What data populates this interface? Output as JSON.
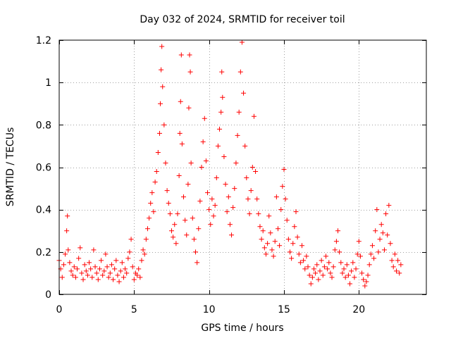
{
  "chart_data": {
    "type": "scatter",
    "title": "Day 032 of 2024, SRMTID for receiver toil",
    "xlabel": "GPS time / hours",
    "ylabel": "SRMTID / TECUs",
    "xlim": [
      0,
      24.5
    ],
    "ylim": [
      0,
      1.2
    ],
    "x_ticks": [
      0,
      5,
      10,
      15,
      20
    ],
    "x_tick_labels": [
      "0",
      "5",
      "10",
      "15",
      "20"
    ],
    "y_ticks": [
      0,
      0.2,
      0.4,
      0.6,
      0.8,
      1.0,
      1.2
    ],
    "y_tick_labels": [
      "0",
      "0.2",
      "0.4",
      "0.6",
      "0.8",
      "1",
      "1.2"
    ],
    "grid": true,
    "marker": "plus",
    "color": "#ff0000",
    "series": [
      {
        "name": "SRMTID",
        "points": [
          [
            0.0,
            0.16
          ],
          [
            0.1,
            0.12
          ],
          [
            0.2,
            0.08
          ],
          [
            0.3,
            0.14
          ],
          [
            0.4,
            0.19
          ],
          [
            0.5,
            0.3
          ],
          [
            0.55,
            0.37
          ],
          [
            0.6,
            0.21
          ],
          [
            0.7,
            0.15
          ],
          [
            0.8,
            0.11
          ],
          [
            0.9,
            0.09
          ],
          [
            1.0,
            0.13
          ],
          [
            1.1,
            0.08
          ],
          [
            1.2,
            0.12
          ],
          [
            1.3,
            0.17
          ],
          [
            1.4,
            0.22
          ],
          [
            1.5,
            0.1
          ],
          [
            1.6,
            0.07
          ],
          [
            1.7,
            0.14
          ],
          [
            1.8,
            0.11
          ],
          [
            1.9,
            0.09
          ],
          [
            2.0,
            0.15
          ],
          [
            2.1,
            0.12
          ],
          [
            2.2,
            0.08
          ],
          [
            2.3,
            0.21
          ],
          [
            2.4,
            0.13
          ],
          [
            2.5,
            0.1
          ],
          [
            2.6,
            0.07
          ],
          [
            2.7,
            0.12
          ],
          [
            2.8,
            0.16
          ],
          [
            2.9,
            0.09
          ],
          [
            3.0,
            0.11
          ],
          [
            3.1,
            0.19
          ],
          [
            3.2,
            0.13
          ],
          [
            3.3,
            0.08
          ],
          [
            3.4,
            0.1
          ],
          [
            3.5,
            0.14
          ],
          [
            3.6,
            0.07
          ],
          [
            3.7,
            0.12
          ],
          [
            3.8,
            0.16
          ],
          [
            3.9,
            0.09
          ],
          [
            4.0,
            0.06
          ],
          [
            4.1,
            0.11
          ],
          [
            4.2,
            0.15
          ],
          [
            4.3,
            0.08
          ],
          [
            4.4,
            0.12
          ],
          [
            4.5,
            0.1
          ],
          [
            4.6,
            0.17
          ],
          [
            4.7,
            0.2
          ],
          [
            4.8,
            0.26
          ],
          [
            4.9,
            0.13
          ],
          [
            5.0,
            0.07
          ],
          [
            5.1,
            0.1
          ],
          [
            5.2,
            0.09
          ],
          [
            5.3,
            0.12
          ],
          [
            5.4,
            0.08
          ],
          [
            5.5,
            0.16
          ],
          [
            5.6,
            0.21
          ],
          [
            5.7,
            0.19
          ],
          [
            5.8,
            0.26
          ],
          [
            5.9,
            0.31
          ],
          [
            6.0,
            0.36
          ],
          [
            6.1,
            0.43
          ],
          [
            6.2,
            0.48
          ],
          [
            6.3,
            0.39
          ],
          [
            6.4,
            0.53
          ],
          [
            6.5,
            0.58
          ],
          [
            6.6,
            0.67
          ],
          [
            6.7,
            0.76
          ],
          [
            6.75,
            0.9
          ],
          [
            6.8,
            1.06
          ],
          [
            6.85,
            1.17
          ],
          [
            6.9,
            0.98
          ],
          [
            7.0,
            0.8
          ],
          [
            7.1,
            0.62
          ],
          [
            7.2,
            0.49
          ],
          [
            7.3,
            0.43
          ],
          [
            7.4,
            0.38
          ],
          [
            7.5,
            0.3
          ],
          [
            7.6,
            0.27
          ],
          [
            7.7,
            0.33
          ],
          [
            7.8,
            0.24
          ],
          [
            7.9,
            0.38
          ],
          [
            8.0,
            0.56
          ],
          [
            8.05,
            0.76
          ],
          [
            8.1,
            0.91
          ],
          [
            8.15,
            1.13
          ],
          [
            8.2,
            0.71
          ],
          [
            8.3,
            0.46
          ],
          [
            8.4,
            0.35
          ],
          [
            8.5,
            0.28
          ],
          [
            8.6,
            0.52
          ],
          [
            8.65,
            0.88
          ],
          [
            8.7,
            1.13
          ],
          [
            8.75,
            1.05
          ],
          [
            8.8,
            0.62
          ],
          [
            8.9,
            0.36
          ],
          [
            9.0,
            0.26
          ],
          [
            9.1,
            0.2
          ],
          [
            9.2,
            0.15
          ],
          [
            9.3,
            0.31
          ],
          [
            9.4,
            0.44
          ],
          [
            9.5,
            0.6
          ],
          [
            9.6,
            0.72
          ],
          [
            9.7,
            0.83
          ],
          [
            9.8,
            0.63
          ],
          [
            9.9,
            0.48
          ],
          [
            10.0,
            0.4
          ],
          [
            10.1,
            0.33
          ],
          [
            10.2,
            0.45
          ],
          [
            10.3,
            0.37
          ],
          [
            10.4,
            0.42
          ],
          [
            10.5,
            0.55
          ],
          [
            10.6,
            0.7
          ],
          [
            10.7,
            0.78
          ],
          [
            10.8,
            0.86
          ],
          [
            10.85,
            1.05
          ],
          [
            10.9,
            0.93
          ],
          [
            11.0,
            0.65
          ],
          [
            11.1,
            0.52
          ],
          [
            11.2,
            0.39
          ],
          [
            11.3,
            0.46
          ],
          [
            11.4,
            0.33
          ],
          [
            11.5,
            0.28
          ],
          [
            11.6,
            0.41
          ],
          [
            11.7,
            0.5
          ],
          [
            11.8,
            0.62
          ],
          [
            11.9,
            0.75
          ],
          [
            12.0,
            0.86
          ],
          [
            12.1,
            1.05
          ],
          [
            12.2,
            1.19
          ],
          [
            12.3,
            0.95
          ],
          [
            12.4,
            0.7
          ],
          [
            12.5,
            0.55
          ],
          [
            12.6,
            0.45
          ],
          [
            12.7,
            0.38
          ],
          [
            12.8,
            0.49
          ],
          [
            12.9,
            0.6
          ],
          [
            13.0,
            0.84
          ],
          [
            13.1,
            0.58
          ],
          [
            13.2,
            0.45
          ],
          [
            13.3,
            0.38
          ],
          [
            13.4,
            0.32
          ],
          [
            13.5,
            0.26
          ],
          [
            13.6,
            0.3
          ],
          [
            13.7,
            0.22
          ],
          [
            13.8,
            0.19
          ],
          [
            13.9,
            0.24
          ],
          [
            14.0,
            0.37
          ],
          [
            14.1,
            0.29
          ],
          [
            14.2,
            0.21
          ],
          [
            14.3,
            0.18
          ],
          [
            14.4,
            0.25
          ],
          [
            14.5,
            0.46
          ],
          [
            14.6,
            0.31
          ],
          [
            14.7,
            0.23
          ],
          [
            14.8,
            0.4
          ],
          [
            14.9,
            0.51
          ],
          [
            15.0,
            0.59
          ],
          [
            15.1,
            0.45
          ],
          [
            15.2,
            0.35
          ],
          [
            15.3,
            0.26
          ],
          [
            15.4,
            0.2
          ],
          [
            15.5,
            0.17
          ],
          [
            15.6,
            0.24
          ],
          [
            15.7,
            0.32
          ],
          [
            15.8,
            0.39
          ],
          [
            15.9,
            0.27
          ],
          [
            16.0,
            0.19
          ],
          [
            16.1,
            0.15
          ],
          [
            16.2,
            0.23
          ],
          [
            16.3,
            0.16
          ],
          [
            16.4,
            0.12
          ],
          [
            16.5,
            0.18
          ],
          [
            16.6,
            0.13
          ],
          [
            16.7,
            0.09
          ],
          [
            16.8,
            0.05
          ],
          [
            16.9,
            0.08
          ],
          [
            17.0,
            0.12
          ],
          [
            17.1,
            0.1
          ],
          [
            17.2,
            0.14
          ],
          [
            17.3,
            0.07
          ],
          [
            17.4,
            0.11
          ],
          [
            17.5,
            0.16
          ],
          [
            17.6,
            0.09
          ],
          [
            17.7,
            0.13
          ],
          [
            17.8,
            0.18
          ],
          [
            17.9,
            0.12
          ],
          [
            18.0,
            0.15
          ],
          [
            18.1,
            0.1
          ],
          [
            18.2,
            0.08
          ],
          [
            18.3,
            0.13
          ],
          [
            18.4,
            0.21
          ],
          [
            18.5,
            0.25
          ],
          [
            18.6,
            0.3
          ],
          [
            18.7,
            0.2
          ],
          [
            18.8,
            0.15
          ],
          [
            18.9,
            0.1
          ],
          [
            19.0,
            0.12
          ],
          [
            19.1,
            0.08
          ],
          [
            19.2,
            0.14
          ],
          [
            19.3,
            0.09
          ],
          [
            19.4,
            0.05
          ],
          [
            19.5,
            0.11
          ],
          [
            19.6,
            0.15
          ],
          [
            19.7,
            0.08
          ],
          [
            19.8,
            0.12
          ],
          [
            19.9,
            0.19
          ],
          [
            20.0,
            0.25
          ],
          [
            20.1,
            0.18
          ],
          [
            20.2,
            0.1
          ],
          [
            20.3,
            0.07
          ],
          [
            20.4,
            0.04
          ],
          [
            20.5,
            0.06
          ],
          [
            20.6,
            0.09
          ],
          [
            20.7,
            0.14
          ],
          [
            20.8,
            0.19
          ],
          [
            20.9,
            0.23
          ],
          [
            21.0,
            0.17
          ],
          [
            21.1,
            0.3
          ],
          [
            21.2,
            0.4
          ],
          [
            21.3,
            0.2
          ],
          [
            21.4,
            0.26
          ],
          [
            21.5,
            0.33
          ],
          [
            21.6,
            0.29
          ],
          [
            21.7,
            0.21
          ],
          [
            21.8,
            0.38
          ],
          [
            21.9,
            0.28
          ],
          [
            22.0,
            0.42
          ],
          [
            22.1,
            0.24
          ],
          [
            22.2,
            0.16
          ],
          [
            22.3,
            0.13
          ],
          [
            22.4,
            0.19
          ],
          [
            22.5,
            0.11
          ],
          [
            22.6,
            0.16
          ],
          [
            22.7,
            0.1
          ],
          [
            22.8,
            0.14
          ]
        ]
      }
    ]
  }
}
